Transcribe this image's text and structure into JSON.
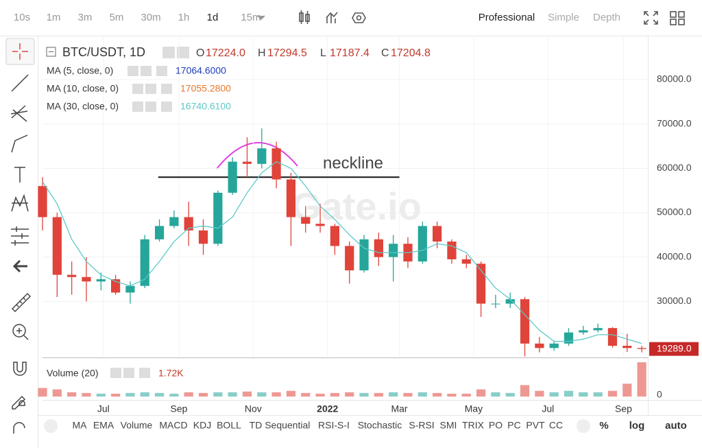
{
  "toolbar": {
    "intervals": [
      "10s",
      "1m",
      "3m",
      "5m",
      "30m",
      "1h",
      "1d",
      "15m"
    ],
    "views": [
      "Professional",
      "Simple",
      "Depth"
    ]
  },
  "indicators_bar": {
    "items": [
      "MA",
      "EMA",
      "Volume",
      "MACD",
      "KDJ",
      "BOLL",
      "TD Sequential",
      "RSI-S-I",
      "Stochastic",
      "S-RSI",
      "SMI",
      "TRIX",
      "PO",
      "PC",
      "PVT",
      "CC"
    ],
    "options": [
      "%",
      "log",
      "auto"
    ]
  },
  "chart_data": {
    "type": "candlestick",
    "title": "BTC/USDT, 1D",
    "ohlc": [
      {
        "label": "O",
        "value": "17224.0"
      },
      {
        "label": "H",
        "value": "17294.5"
      },
      {
        "label": "L",
        "value": "17187.4"
      },
      {
        "label": "C",
        "value": "17204.8"
      }
    ],
    "indicators": [
      {
        "name": "MA (5, close, 0)",
        "value": "17064.6000",
        "color": "#1f3fbf"
      },
      {
        "name": "MA (10, close, 0)",
        "value": "17055.2800",
        "color": "#e8762d"
      },
      {
        "name": "MA (30, close, 0)",
        "value": "16740.6100",
        "color": "#5ec8c8"
      }
    ],
    "up_color": "#26a69a",
    "down_color": "#e0433a",
    "x": [
      0,
      12,
      24,
      36,
      48,
      60,
      72,
      84,
      96,
      108,
      120,
      132,
      144,
      156,
      168,
      180,
      192,
      204,
      216,
      228,
      240,
      252,
      264,
      276,
      288,
      300,
      312,
      324,
      336,
      348,
      360,
      372,
      384,
      396,
      408,
      420,
      432,
      444,
      456,
      468,
      480,
      492
    ],
    "open": [
      56000,
      49000,
      36000,
      35500,
      34500,
      35000,
      32000,
      33500,
      44000,
      47000,
      49000,
      46000,
      43000,
      54500,
      61500,
      61000,
      64500,
      57500,
      49000,
      47500,
      47000,
      42500,
      37000,
      44000,
      40000,
      43000,
      39000,
      47000,
      43500,
      39500,
      38500,
      29500,
      29500,
      30500,
      20500,
      19500,
      20500,
      23000,
      23500,
      24000,
      20000,
      19500
    ],
    "high": [
      58000,
      50000,
      39000,
      40000,
      36500,
      36000,
      34500,
      45000,
      48500,
      50500,
      52500,
      48500,
      55000,
      62500,
      67000,
      69000,
      66000,
      59000,
      51500,
      52000,
      47500,
      43500,
      45000,
      45500,
      45000,
      44500,
      48000,
      48000,
      44000,
      40500,
      39000,
      31500,
      32000,
      31000,
      22000,
      21000,
      24000,
      24500,
      25000,
      24200,
      22700,
      20000
    ],
    "low": [
      46000,
      31000,
      31500,
      30000,
      32500,
      31500,
      29500,
      33000,
      43500,
      46500,
      42500,
      40500,
      42500,
      54000,
      58000,
      60000,
      55500,
      42500,
      45500,
      45500,
      40500,
      34000,
      36500,
      38000,
      34500,
      37500,
      38500,
      42000,
      38500,
      37500,
      26500,
      28500,
      28500,
      17600,
      18500,
      18900,
      20000,
      22500,
      23000,
      19600,
      18600,
      18500
    ],
    "close": [
      49000,
      36000,
      35500,
      34500,
      35000,
      32000,
      33500,
      44000,
      47000,
      49000,
      46000,
      43000,
      54500,
      61500,
      61000,
      64500,
      57500,
      49000,
      47500,
      47000,
      42500,
      37000,
      44000,
      40000,
      43000,
      39000,
      47000,
      43500,
      39500,
      38500,
      29500,
      29500,
      30500,
      20500,
      19500,
      20500,
      23000,
      23500,
      24000,
      20000,
      19500,
      19289
    ],
    "ma30": [
      57000,
      52000,
      44000,
      39000,
      36000,
      34500,
      33500,
      35000,
      39000,
      43500,
      46500,
      47000,
      46500,
      49000,
      54500,
      59000,
      61500,
      60000,
      56000,
      51500,
      48500,
      45000,
      42000,
      41000,
      41000,
      41000,
      41500,
      43000,
      42500,
      41000,
      37000,
      33000,
      30500,
      27000,
      23500,
      21000,
      21000,
      21500,
      22500,
      22500,
      21500,
      20500
    ],
    "xlim": [
      0,
      497
    ],
    "xticks": [
      {
        "value": 50,
        "label": "Jul"
      },
      {
        "value": 112,
        "label": "Sep"
      },
      {
        "value": 173,
        "label": "Nov"
      },
      {
        "value": 234,
        "label": "2022"
      },
      {
        "value": 293,
        "label": "Mar"
      },
      {
        "value": 354,
        "label": "May"
      },
      {
        "value": 415,
        "label": "Jul"
      },
      {
        "value": 477,
        "label": "Sep"
      }
    ],
    "ylim": [
      17530,
      89900
    ],
    "yticks": [
      {
        "value": 30000,
        "label": "30000.0"
      },
      {
        "value": 40000,
        "label": "40000.0"
      },
      {
        "value": 50000,
        "label": "50000.0"
      },
      {
        "value": 60000,
        "label": "60000.0"
      },
      {
        "value": 70000,
        "label": "70000.0"
      },
      {
        "value": 80000,
        "label": "80000.0"
      }
    ],
    "last_price": {
      "value": 19289,
      "label": "19289.0"
    },
    "neckline": {
      "label": "neckline",
      "value": 58000,
      "x": [
        95,
        293
      ]
    },
    "watermark": "Gate.io",
    "volume": {
      "name": "Volume (20)",
      "value": "1.72K",
      "values": [
        6,
        5,
        3,
        2.5,
        2,
        2,
        2.5,
        3,
        2.5,
        2,
        3,
        2.5,
        3,
        3,
        3.5,
        3,
        3,
        4,
        2.5,
        2,
        2.5,
        3,
        2.5,
        2.5,
        3,
        2.5,
        3,
        2.5,
        2,
        2,
        5,
        3,
        2.5,
        8,
        4,
        3,
        4,
        3,
        3,
        4,
        9,
        24
      ],
      "ylim": [
        0,
        25
      ],
      "yticks": [
        0
      ]
    }
  }
}
